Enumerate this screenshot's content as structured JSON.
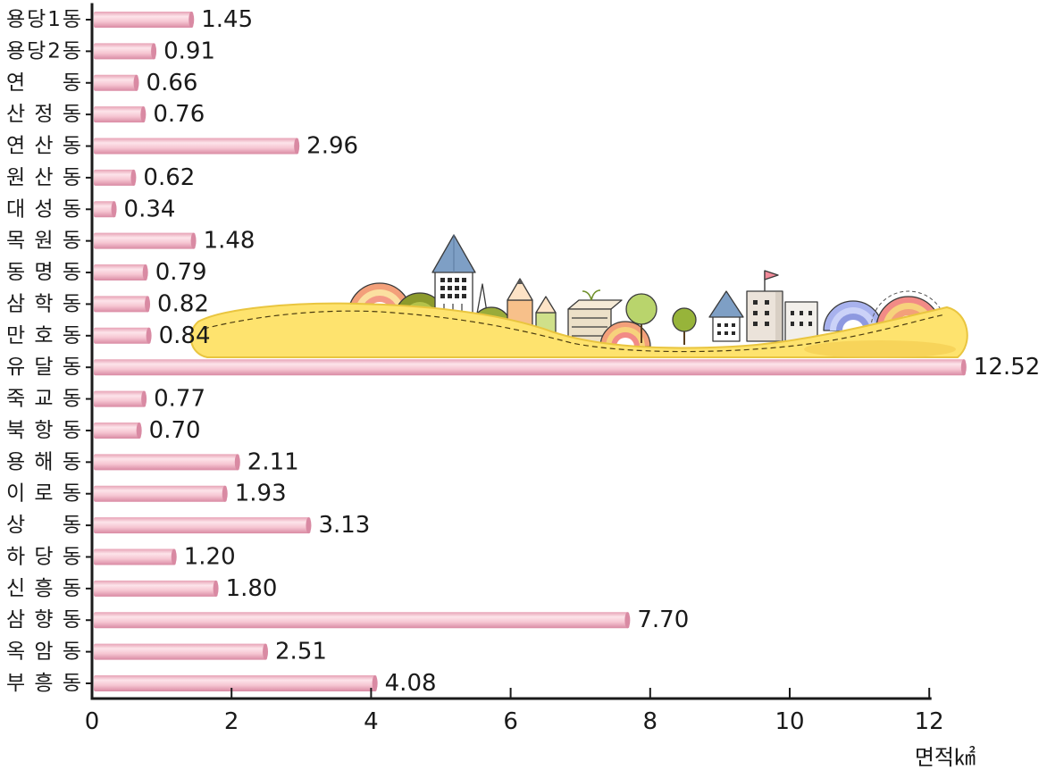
{
  "chart_data": {
    "type": "bar",
    "orientation": "horizontal",
    "title": "",
    "xlabel": "면적㎢",
    "ylabel": "",
    "categories": [
      "용당1동",
      "용당2동",
      "연 동",
      "산정동",
      "연산동",
      "원산동",
      "대성동",
      "목원동",
      "동명동",
      "삼학동",
      "만호동",
      "유달동",
      "죽교동",
      "북항동",
      "용해동",
      "이로동",
      "상 동",
      "하당동",
      "신흥동",
      "삼향동",
      "옥암동",
      "부흥동"
    ],
    "values": [
      1.45,
      0.91,
      0.66,
      0.76,
      2.96,
      0.62,
      0.34,
      1.48,
      0.79,
      0.82,
      0.84,
      12.52,
      0.77,
      0.7,
      2.11,
      1.93,
      3.13,
      1.2,
      1.8,
      7.7,
      2.51,
      4.08
    ],
    "value_labels": [
      "1.45",
      "0.91",
      "0.66",
      "0.76",
      "2.96",
      "0.62",
      "0.34",
      "1.48",
      "0.79",
      "0.82",
      "0.84",
      "12.52",
      "0.77",
      "0.70",
      "2.11",
      "1.93",
      "3.13",
      "1.20",
      "1.80",
      "7.70",
      "2.51",
      "4.08"
    ],
    "xlim": [
      0,
      12
    ],
    "xticks": [
      0,
      2,
      4,
      6,
      8,
      10,
      12
    ],
    "grid": false,
    "legend": "none",
    "colors": {
      "bar_top": "#e7a2b5",
      "bar_highlight": "#fde4ea",
      "bar_body": "#f6c6d2",
      "bar_bottom": "#d98aa3",
      "axis": "#1a1a1a",
      "text": "#1a1a1a"
    }
  },
  "illustration": {
    "icon": "city-skyline-on-yellow-hill"
  }
}
